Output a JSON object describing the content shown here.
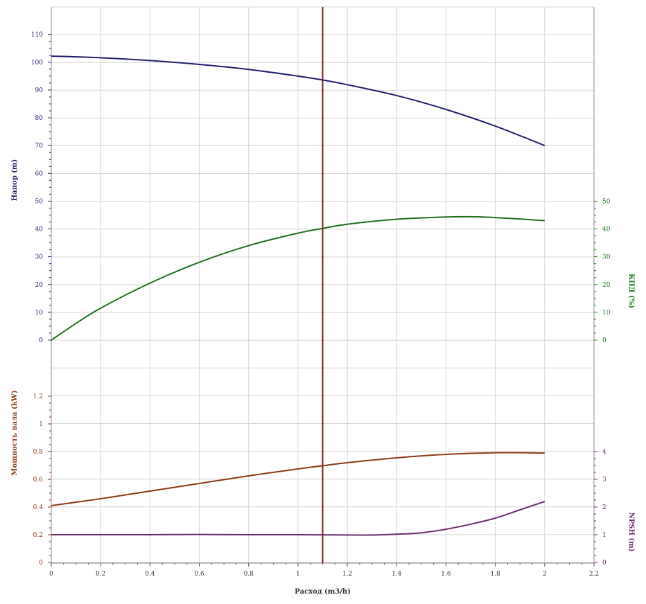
{
  "chart_data": {
    "type": "line",
    "x": {
      "label": "Расход (m3/h)",
      "min": 0,
      "max": 2.2,
      "ticks": [
        0,
        0.2,
        0.4,
        0.6,
        0.8,
        1,
        1.2,
        1.4,
        1.6,
        1.8,
        2,
        2.2
      ],
      "tick_labels": [
        "0",
        "0.2",
        "0.4",
        "0.6",
        "0.8",
        "1",
        "1.2",
        "1.4",
        "1.6",
        "1.8",
        "2",
        "2.2"
      ]
    },
    "duty_point": {
      "x": 1.1,
      "color": "#7a1f1f"
    },
    "grid": true,
    "axes": {
      "head": {
        "label": "Напор (m)",
        "color": "#23236e",
        "side": "left",
        "panel": "top",
        "ticks": [
          0,
          10,
          20,
          30,
          40,
          50,
          60,
          70,
          80,
          90,
          100,
          110
        ],
        "tick_labels": [
          "0",
          "10",
          "20",
          "30",
          "40",
          "50",
          "60",
          "70",
          "80",
          "90",
          "100",
          "110"
        ]
      },
      "efficiency": {
        "label": "КПД (%)",
        "color": "#1e7a1e",
        "side": "right",
        "panel": "top",
        "ticks": [
          0,
          10,
          20,
          30,
          40,
          50
        ],
        "tick_labels": [
          "0",
          "10",
          "20",
          "30",
          "40",
          "50"
        ]
      },
      "power": {
        "label": "Мощность вала (kW)",
        "color": "#8b3a14",
        "side": "left",
        "panel": "bottom",
        "ticks": [
          0,
          0.2,
          0.4,
          0.6,
          0.8,
          1,
          1.2
        ],
        "tick_labels": [
          "0",
          "0.2",
          "0.4",
          "0.6",
          "0.8",
          "1",
          "1.2"
        ]
      },
      "npsh": {
        "label": "NPSH (m)",
        "color": "#6b2d6b",
        "side": "right",
        "panel": "bottom",
        "ticks": [
          0,
          1,
          2,
          3,
          4
        ],
        "tick_labels": [
          "0",
          "1",
          "2",
          "3",
          "4"
        ]
      }
    },
    "series": [
      {
        "axis": "head",
        "color": "#1f1f6b",
        "x": [
          0,
          0.2,
          0.4,
          0.6,
          0.8,
          1.0,
          1.1,
          1.2,
          1.4,
          1.6,
          1.8,
          2.0
        ],
        "y": [
          102.2,
          101.6,
          100.6,
          99.2,
          97.4,
          95.0,
          93.6,
          91.9,
          88.0,
          83.0,
          77.0,
          70.0
        ]
      },
      {
        "axis": "efficiency",
        "color": "#1e6e1e",
        "x": [
          0,
          0.1,
          0.2,
          0.4,
          0.6,
          0.8,
          1.0,
          1.1,
          1.2,
          1.4,
          1.6,
          1.7,
          1.8,
          2.0
        ],
        "y": [
          0,
          6,
          11.5,
          20.5,
          28,
          34,
          38.5,
          40.2,
          41.7,
          43.5,
          44.3,
          44.4,
          44.1,
          43.0
        ]
      },
      {
        "axis": "power",
        "color": "#8b3a14",
        "x": [
          0,
          0.2,
          0.4,
          0.6,
          0.8,
          1.0,
          1.1,
          1.2,
          1.4,
          1.6,
          1.8,
          2.0
        ],
        "y": [
          0.41,
          0.46,
          0.515,
          0.57,
          0.625,
          0.675,
          0.698,
          0.72,
          0.755,
          0.78,
          0.792,
          0.79
        ]
      },
      {
        "axis": "npsh",
        "color": "#6b2d6b",
        "x": [
          0,
          0.2,
          0.4,
          0.6,
          0.8,
          1.0,
          1.2,
          1.3,
          1.4,
          1.5,
          1.6,
          1.7,
          1.8,
          1.9,
          2.0
        ],
        "y": [
          1.0,
          1.0,
          1.0,
          1.01,
          1.0,
          1.0,
          0.99,
          0.99,
          1.02,
          1.07,
          1.2,
          1.38,
          1.6,
          1.9,
          2.2
        ]
      }
    ]
  }
}
